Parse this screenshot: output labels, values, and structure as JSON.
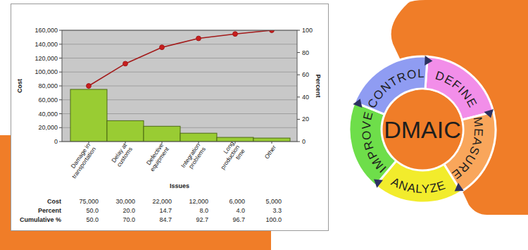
{
  "chart_data": {
    "type": "bar",
    "categories": [
      "Damage in transportation",
      "Delay at customs",
      "Defective equipment",
      "Integration problems",
      "Long production time",
      "Other"
    ],
    "x_label": "Issues",
    "y_label": "Cost",
    "y2_label": "Percent",
    "series": [
      {
        "type": "bar",
        "color": "#99cc33",
        "values": [
          75000,
          30000,
          22000,
          12000,
          6000,
          5000
        ]
      },
      {
        "type": "line",
        "axis": "y2",
        "color": "#a31a1a",
        "marker": "circle",
        "values": [
          50.0,
          70.0,
          84.7,
          92.7,
          96.7,
          100.0
        ]
      }
    ],
    "ylim": [
      0,
      160000
    ],
    "yticks": [
      0,
      {
        "value": 20000,
        "label": "20,000"
      },
      {
        "value": 40000,
        "label": "40,000"
      },
      {
        "value": 60000,
        "label": "60,000"
      },
      {
        "value": 80000,
        "label": "80,000"
      },
      {
        "value": 100000,
        "label": "100,000"
      },
      {
        "value": 120000,
        "label": "120,000"
      },
      {
        "value": 140000,
        "label": "140,000"
      },
      {
        "value": 160000,
        "label": "160,000"
      }
    ],
    "y2lim": [
      0,
      100
    ],
    "y2ticks": [
      0,
      20,
      40,
      60,
      80,
      100
    ],
    "grid": true
  },
  "table": {
    "row_labels": [
      "Cost",
      "Percent",
      "Cumulative %"
    ],
    "rows": [
      [
        "75,000",
        "30,000",
        "22,000",
        "12,000",
        "6,000",
        "5,000"
      ],
      [
        "50.0",
        "20.0",
        "14.7",
        "8.0",
        "4.0",
        "3.3"
      ],
      [
        "50.0",
        "70.0",
        "84.7",
        "92.7",
        "96.7",
        "100.0"
      ]
    ]
  },
  "diagram": {
    "center": "DMAIC",
    "stages": [
      "DEFINE",
      "MEASURE",
      "ANALYZE",
      "IMPROVE",
      "CONTROL"
    ]
  }
}
